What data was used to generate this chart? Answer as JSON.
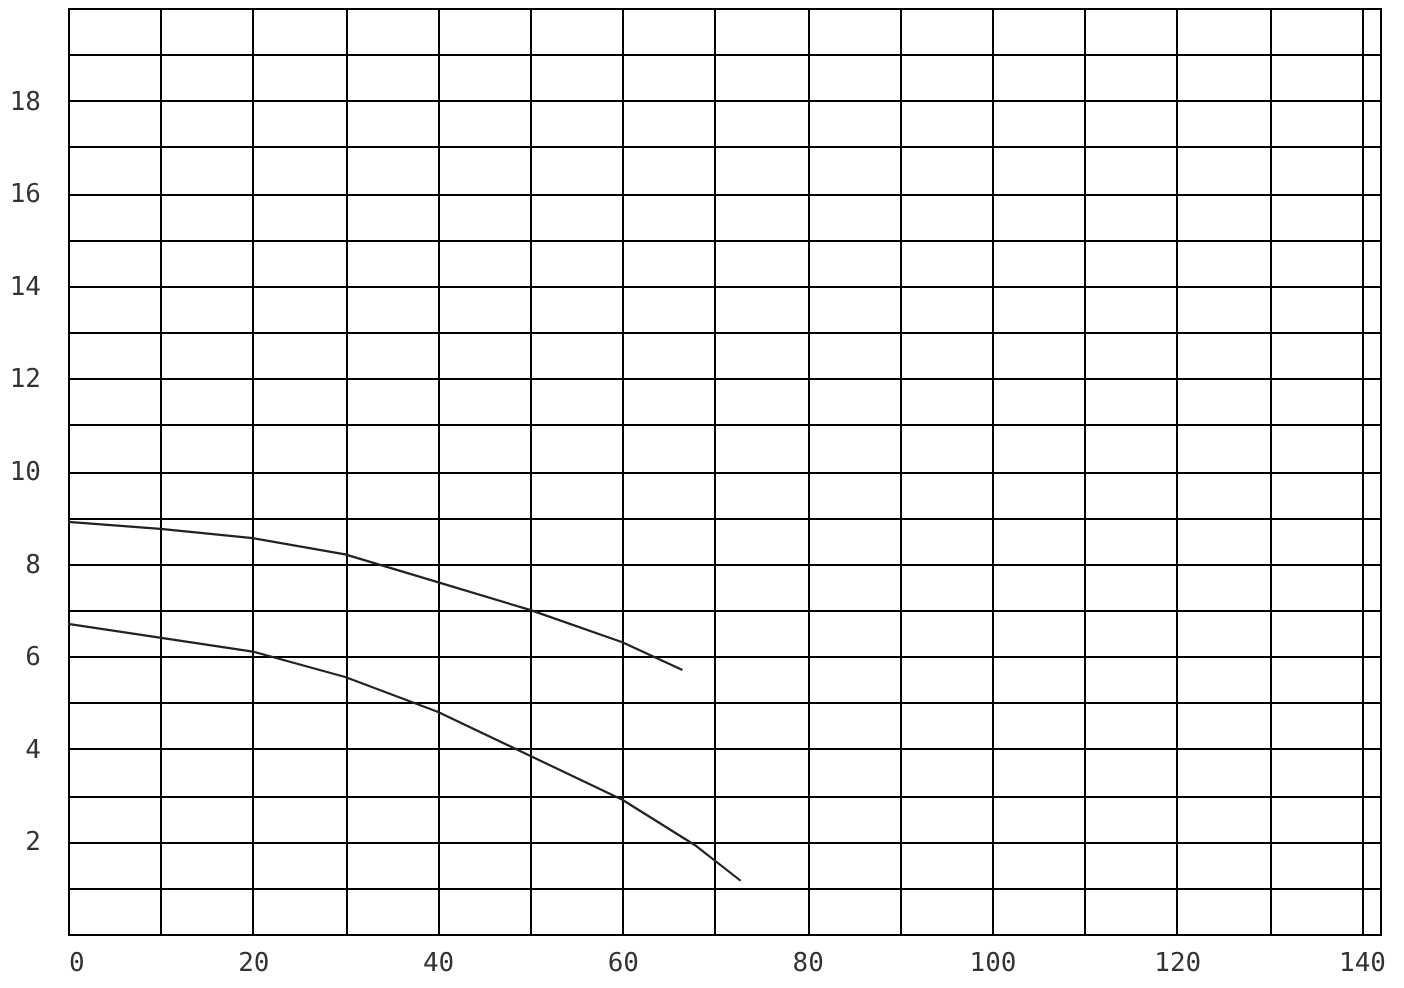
{
  "chart_data": {
    "type": "line",
    "xlim": [
      0,
      142
    ],
    "ylim": [
      0,
      20
    ],
    "xticks": [
      0,
      {
        "value": 10,
        "label": null
      },
      20,
      {
        "value": 30,
        "label": null
      },
      40,
      {
        "value": 50,
        "label": null
      },
      60,
      {
        "value": 70,
        "label": null
      },
      80,
      {
        "value": 90,
        "label": null
      },
      100,
      {
        "value": 110,
        "label": null
      },
      120,
      {
        "value": 130,
        "label": null
      },
      140
    ],
    "yticks": [
      {
        "value": 1,
        "label": null
      },
      2,
      {
        "value": 3,
        "label": null
      },
      4,
      {
        "value": 5,
        "label": null
      },
      6,
      {
        "value": 7,
        "label": null
      },
      8,
      {
        "value": 9,
        "label": null
      },
      10,
      {
        "value": 11,
        "label": null
      },
      12,
      {
        "value": 13,
        "label": null
      },
      14,
      {
        "value": 15,
        "label": null
      },
      16,
      {
        "value": 17,
        "label": null
      },
      18,
      {
        "value": 19,
        "label": null
      }
    ],
    "grid": true,
    "marker": "none",
    "line_style": "solid",
    "series": [
      {
        "color": "#222222",
        "x": [
          0,
          10,
          20,
          30,
          40,
          50,
          60,
          66.5
        ],
        "values": [
          8.9,
          8.75,
          8.55,
          8.2,
          7.6,
          7.0,
          6.3,
          5.7
        ]
      },
      {
        "color": "#222222",
        "x": [
          0,
          20,
          30,
          40,
          50,
          60,
          68,
          72.8
        ],
        "values": [
          6.7,
          6.1,
          5.55,
          4.8,
          3.85,
          2.9,
          1.9,
          1.15
        ]
      }
    ]
  }
}
